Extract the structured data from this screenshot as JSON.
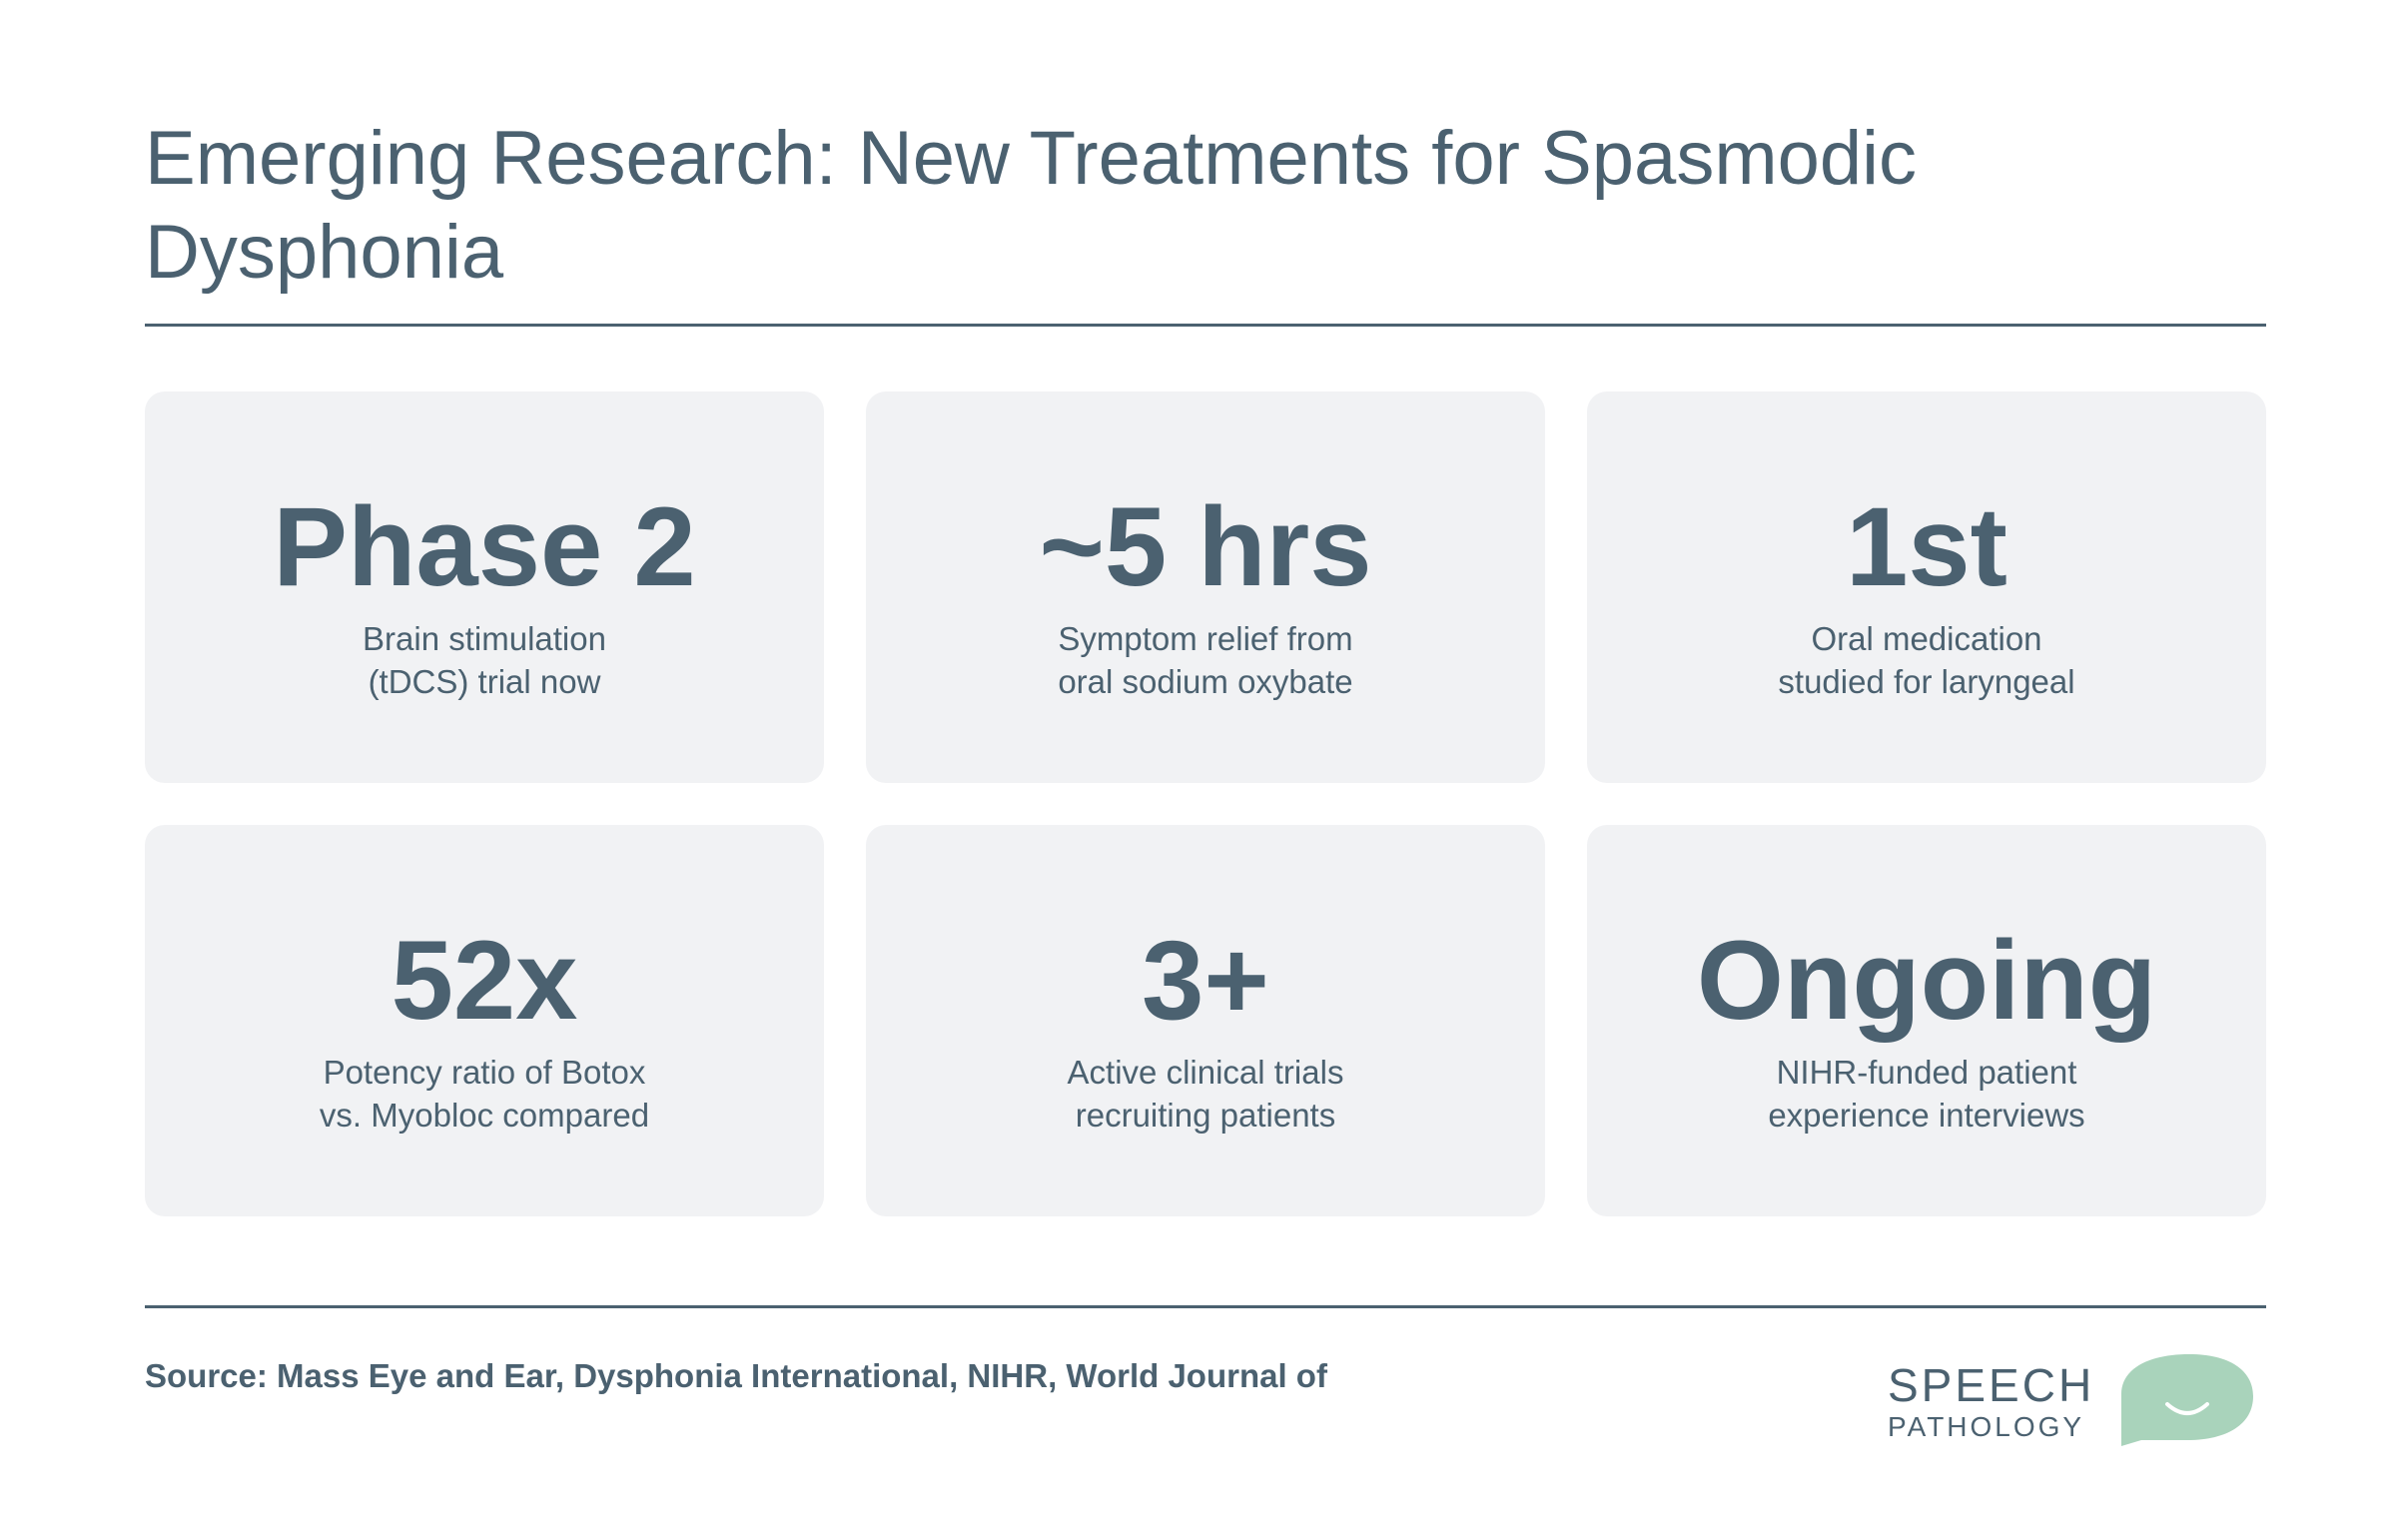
{
  "page": {
    "title": "Emerging Research: New Treatments for Spasmodic Dysphonia"
  },
  "stats": [
    {
      "value": "Phase 2",
      "desc_line1": "Brain stimulation",
      "desc_line2": "(tDCS) trial now"
    },
    {
      "value": "~5 hrs",
      "desc_line1": "Symptom relief from",
      "desc_line2": "oral sodium oxybate"
    },
    {
      "value": "1st",
      "desc_line1": "Oral medication",
      "desc_line2": "studied for laryngeal"
    },
    {
      "value": "52x",
      "desc_line1": "Potency ratio of Botox",
      "desc_line2": "vs. Myobloc compared"
    },
    {
      "value": "3+",
      "desc_line1": "Active clinical trials",
      "desc_line2": "recruiting patients"
    },
    {
      "value": "Ongoing",
      "desc_line1": "NIHR-funded patient",
      "desc_line2": "experience interviews"
    }
  ],
  "footer": {
    "source": "Source: Mass Eye and Ear, Dysphonia International, NIHR, World Journal of",
    "logo_line1": "SPEECH",
    "logo_line2": "PATHOLOGY",
    "logo_icon": "speech-bubble-smile-icon"
  },
  "colors": {
    "text": "#4b6170",
    "card_bg": "#f1f2f4",
    "logo_accent": "#a9d3bb"
  }
}
